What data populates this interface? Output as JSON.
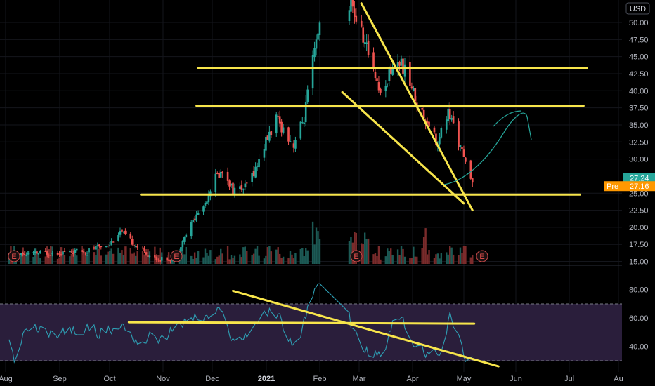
{
  "chart_data": [
    {
      "type": "candlestick",
      "currency": "USD",
      "x_labels": [
        "Aug",
        "Sep",
        "Oct",
        "Nov",
        "Dec",
        "2021",
        "Feb",
        "Mar",
        "Apr",
        "May",
        "Jun",
        "Jul",
        "Au"
      ],
      "y_ticks": [
        "50.00",
        "47.50",
        "45.00",
        "42.50",
        "40.00",
        "37.50",
        "35.00",
        "32.50",
        "30.00",
        "25.00",
        "22.50",
        "20.00",
        "17.50",
        "15.00"
      ],
      "ylim": [
        14.8,
        53.3
      ],
      "last_price": {
        "value": 27.24,
        "label": "27.24",
        "color": "#26a69a"
      },
      "premarket": {
        "label": "Pre",
        "value": 27.16,
        "value_label": "27.16",
        "color": "#ff9800"
      },
      "earnings_marker": "E",
      "earnings_dates": [
        "Aug",
        "2020-10-29",
        "2021-02-25",
        "2021-05-06"
      ],
      "up_color": "#26a69a",
      "down_color": "#ef5350",
      "trendline_color": "#f7e54b",
      "projection_color": "#26a69a",
      "trendlines": [
        {
          "kind": "horizontal",
          "from": "2020-10-18",
          "to": "2021-06-28",
          "price": 24.8
        },
        {
          "kind": "horizontal",
          "from": "2020-11-19",
          "to": "2021-06-30",
          "price": 37.8
        },
        {
          "kind": "horizontal",
          "from": "2020-11-20",
          "to": "2021-07-02",
          "price": 43.3
        },
        {
          "kind": "diagonal",
          "from": "2021-02-11",
          "from_price": 39.8,
          "to": "2021-04-22",
          "to_price": 23.5
        },
        {
          "kind": "diagonal",
          "from": "2021-02-22",
          "from_price": 52.8,
          "to": "2021-04-27",
          "to_price": 22.5
        }
      ]
    },
    {
      "type": "line",
      "indicator": "RSI",
      "y_ticks": [
        "80.00",
        "60.00",
        "40.00"
      ],
      "ylim": [
        27,
        85
      ],
      "overbought": 70,
      "oversold": 30,
      "band_color": "#2a1e3b",
      "line_color": "#2e9fb4",
      "trendlines": [
        {
          "from": "2020-10-11",
          "from_value": 57,
          "to": "2021-04-28",
          "to_value": 56
        },
        {
          "from": "2020-12-10",
          "from_value": 79,
          "to": "2021-05-12",
          "to_value": 26
        }
      ]
    }
  ]
}
